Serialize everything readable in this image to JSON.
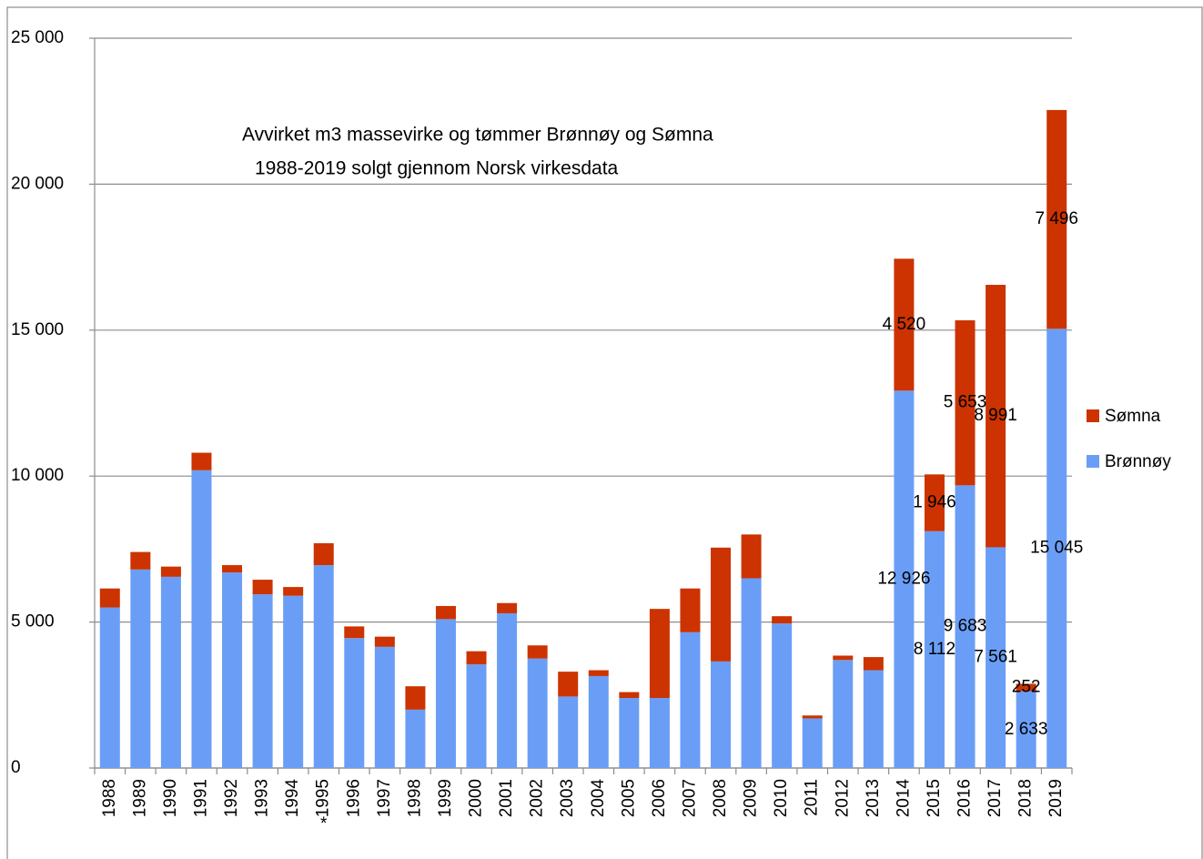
{
  "chart_data": {
    "type": "stacked_bar",
    "title": [
      "Avvirket m3 massevirke og tømmer Brønnøy og Sømna",
      "1988-2019 solgt gjennom Norsk virkesdata"
    ],
    "categories": [
      "1988",
      "1989",
      "1990",
      "1991",
      "1992",
      "1993",
      "1994",
      "1995",
      "1996",
      "1997",
      "1998",
      "1999",
      "2000",
      "2001",
      "2002",
      "2003",
      "2004",
      "2005",
      "2006",
      "2007",
      "2008",
      "2009",
      "2010",
      "2011",
      "2012",
      "2013",
      "2014",
      "2015",
      "2016",
      "2017",
      "2018",
      "2019"
    ],
    "series": [
      {
        "name": "Brønnøy",
        "color": "#6a9ef6",
        "values": [
          5500,
          6800,
          6550,
          10200,
          6700,
          5950,
          5900,
          6950,
          4450,
          4150,
          2000,
          5100,
          3550,
          5300,
          3750,
          2450,
          3150,
          2400,
          2400,
          4650,
          3650,
          6500,
          4950,
          1700,
          3700,
          3350,
          12926,
          8112,
          9683,
          7561,
          2633,
          15045
        ],
        "value_labels": [
          null,
          null,
          null,
          null,
          null,
          null,
          null,
          null,
          null,
          null,
          null,
          null,
          null,
          null,
          null,
          null,
          null,
          null,
          null,
          null,
          null,
          null,
          null,
          null,
          null,
          null,
          "12 926",
          "8 112",
          "9 683",
          "7 561",
          "2 633",
          "15 045"
        ]
      },
      {
        "name": "Sømna",
        "color": "#cc3300",
        "values": [
          650,
          600,
          350,
          600,
          250,
          500,
          300,
          750,
          400,
          350,
          800,
          450,
          450,
          350,
          450,
          850,
          200,
          200,
          3050,
          1500,
          3900,
          1500,
          250,
          100,
          150,
          450,
          4520,
          1946,
          5653,
          8991,
          252,
          7496
        ],
        "value_labels": [
          null,
          null,
          null,
          null,
          null,
          null,
          null,
          null,
          null,
          null,
          null,
          null,
          null,
          null,
          null,
          null,
          null,
          null,
          null,
          null,
          null,
          null,
          null,
          null,
          null,
          null,
          "4 520",
          "1 946",
          "5 653",
          "8 991",
          "252",
          "7 496"
        ]
      }
    ],
    "ylim": [
      0,
      25000
    ],
    "yticks": [
      0,
      {
        "value": 5000,
        "label": "5 000"
      },
      {
        "value": 10000,
        "label": "10 000"
      },
      {
        "value": 15000,
        "label": "15 000"
      },
      {
        "value": 20000,
        "label": "20 000"
      },
      {
        "value": 25000,
        "label": "25 000"
      }
    ],
    "grid": true,
    "legend": "right",
    "annotations": [
      {
        "text": "*",
        "category": "1995"
      }
    ]
  }
}
